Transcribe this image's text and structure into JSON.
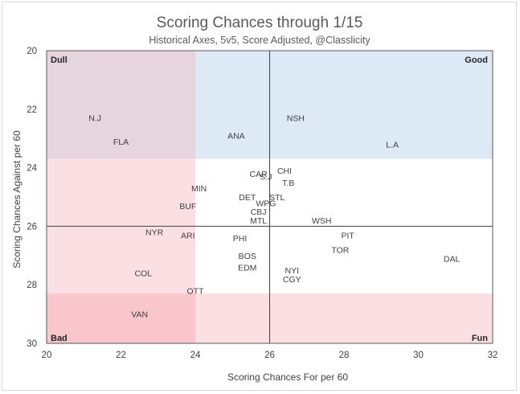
{
  "chart_data": {
    "type": "scatter",
    "title": "Scoring Chances through 1/15",
    "subtitle": "Historical Axes, 5v5, Score Adjusted, @Classlicity",
    "xlabel": "Scoring Chances For per 60",
    "ylabel": "Scoring Chances Against per 60",
    "xlim": [
      20,
      32
    ],
    "ylim": [
      20,
      30
    ],
    "y_inverted": true,
    "xticks": [
      20,
      22,
      24,
      26,
      28,
      30,
      32
    ],
    "yticks": [
      20,
      22,
      24,
      26,
      28,
      30
    ],
    "crosshair": {
      "x": 26,
      "y": 26
    },
    "bands": {
      "x": [
        20,
        24,
        28,
        32
      ],
      "y": [
        20,
        23.7,
        28.3,
        30
      ]
    },
    "band_colors": [
      [
        "#e6d5dd",
        "#dde9f5",
        "#dde9f5",
        "#c5daef"
      ],
      [
        "#fbe0e3",
        "#ffffff",
        "#ffffff",
        "#dde9f5"
      ],
      [
        "#f8c6cb",
        "#fbe0e3",
        "#fbe0e3",
        "#e6d5dd"
      ]
    ],
    "corner_labels": {
      "top_left": "Dull",
      "top_right": "Good",
      "bottom_left": "Bad",
      "bottom_right": "Fun"
    },
    "points": [
      {
        "team": "N.J",
        "x": 21.3,
        "y": 22.3
      },
      {
        "team": "FLA",
        "x": 22.0,
        "y": 23.1
      },
      {
        "team": "ANA",
        "x": 25.1,
        "y": 22.9
      },
      {
        "team": "NSH",
        "x": 26.7,
        "y": 22.3
      },
      {
        "team": "L.A",
        "x": 29.3,
        "y": 23.2
      },
      {
        "team": "CAR",
        "x": 25.7,
        "y": 24.2
      },
      {
        "team": "S.J",
        "x": 25.9,
        "y": 24.3
      },
      {
        "team": "CHI",
        "x": 26.4,
        "y": 24.1
      },
      {
        "team": "T.B",
        "x": 26.5,
        "y": 24.5
      },
      {
        "team": "MIN",
        "x": 24.1,
        "y": 24.7
      },
      {
        "team": "DET",
        "x": 25.4,
        "y": 25.0
      },
      {
        "team": "STL",
        "x": 26.2,
        "y": 25.0
      },
      {
        "team": "WPG",
        "x": 25.9,
        "y": 25.2
      },
      {
        "team": "BUF",
        "x": 23.8,
        "y": 25.3
      },
      {
        "team": "CBJ",
        "x": 25.7,
        "y": 25.5
      },
      {
        "team": "MTL",
        "x": 25.7,
        "y": 25.8
      },
      {
        "team": "WSH",
        "x": 27.4,
        "y": 25.8
      },
      {
        "team": "NYR",
        "x": 22.9,
        "y": 26.2
      },
      {
        "team": "ARI",
        "x": 23.8,
        "y": 26.3
      },
      {
        "team": "PIT",
        "x": 28.1,
        "y": 26.3
      },
      {
        "team": "PHI",
        "x": 25.2,
        "y": 26.4
      },
      {
        "team": "TOR",
        "x": 27.9,
        "y": 26.8
      },
      {
        "team": "BOS",
        "x": 25.4,
        "y": 27.0
      },
      {
        "team": "DAL",
        "x": 30.9,
        "y": 27.1
      },
      {
        "team": "EDM",
        "x": 25.4,
        "y": 27.4
      },
      {
        "team": "NYI",
        "x": 26.6,
        "y": 27.5
      },
      {
        "team": "COL",
        "x": 22.6,
        "y": 27.6
      },
      {
        "team": "CGY",
        "x": 26.6,
        "y": 27.8
      },
      {
        "team": "OTT",
        "x": 24.0,
        "y": 28.2
      },
      {
        "team": "VAN",
        "x": 22.5,
        "y": 29.0
      }
    ]
  }
}
